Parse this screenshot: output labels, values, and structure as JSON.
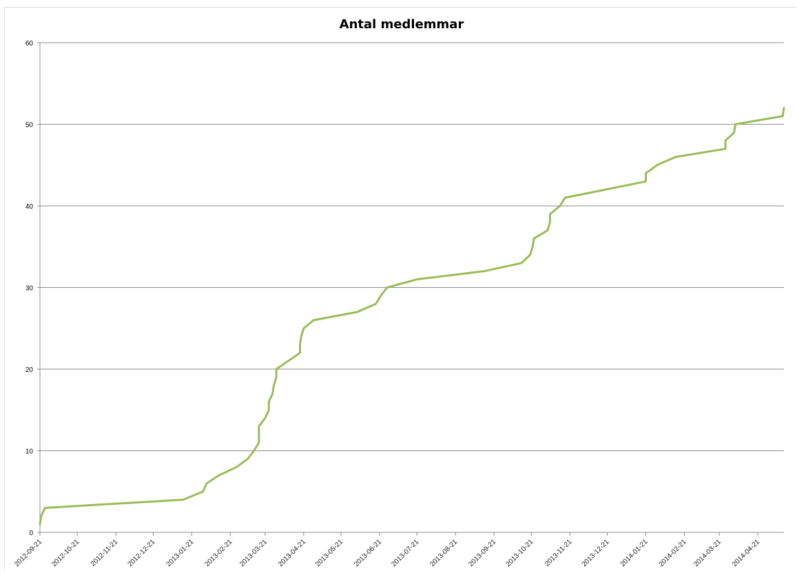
{
  "chart_data": {
    "type": "line",
    "title": "Antal medlemmar",
    "xlabel": "",
    "ylabel": "",
    "x_axis_type": "date",
    "xlim": [
      "2012-09-21",
      "2014-05-12"
    ],
    "ylim": [
      0,
      60
    ],
    "y_ticks": [
      0,
      10,
      20,
      30,
      40,
      50,
      60
    ],
    "x_ticks": [
      "2012-09-21",
      "2012-10-21",
      "2012-11-21",
      "2012-12-21",
      "2013-01-21",
      "2013-02-21",
      "2013-03-21",
      "2013-04-21",
      "2013-05-21",
      "2013-06-21",
      "2013-07-21",
      "2013-08-21",
      "2013-09-21",
      "2013-10-21",
      "2013-11-21",
      "2013-12-21",
      "2014-01-21",
      "2014-02-21",
      "2014-03-21",
      "2014-04-21"
    ],
    "grid": true,
    "legend": "none",
    "colors": {
      "line": "#9bbb59",
      "grid": "#8c8c8c"
    },
    "series": [
      {
        "points": [
          [
            "2012-09-21",
            1
          ],
          [
            "2012-09-22",
            2
          ],
          [
            "2012-09-25",
            3
          ],
          [
            "2013-01-14",
            4
          ],
          [
            "2013-01-30",
            5
          ],
          [
            "2013-02-02",
            6
          ],
          [
            "2013-02-12",
            7
          ],
          [
            "2013-02-26",
            8
          ],
          [
            "2013-03-07",
            9
          ],
          [
            "2013-03-12",
            10
          ],
          [
            "2013-03-16",
            11
          ],
          [
            "2013-03-16",
            12
          ],
          [
            "2013-03-16",
            13
          ],
          [
            "2013-03-21",
            14
          ],
          [
            "2013-03-24",
            15
          ],
          [
            "2013-03-24",
            16
          ],
          [
            "2013-03-27",
            17
          ],
          [
            "2013-03-28",
            18
          ],
          [
            "2013-03-30",
            19
          ],
          [
            "2013-03-30",
            20
          ],
          [
            "2013-04-18",
            22
          ],
          [
            "2013-04-18",
            23
          ],
          [
            "2013-04-19",
            24
          ],
          [
            "2013-04-21",
            25
          ],
          [
            "2013-04-29",
            26
          ],
          [
            "2013-06-03",
            27
          ],
          [
            "2013-06-18",
            28
          ],
          [
            "2013-06-22",
            29
          ],
          [
            "2013-06-27",
            30
          ],
          [
            "2013-07-21",
            31
          ],
          [
            "2013-09-13",
            32
          ],
          [
            "2013-10-13",
            33
          ],
          [
            "2013-10-20",
            34
          ],
          [
            "2013-10-22",
            35
          ],
          [
            "2013-10-23",
            36
          ],
          [
            "2013-11-03",
            37
          ],
          [
            "2013-11-05",
            38
          ],
          [
            "2013-11-05",
            39
          ],
          [
            "2013-11-13",
            40
          ],
          [
            "2013-11-17",
            41
          ],
          [
            "2014-01-21",
            43
          ],
          [
            "2014-01-21",
            44
          ],
          [
            "2014-01-30",
            45
          ],
          [
            "2014-02-14",
            46
          ],
          [
            "2014-03-26",
            47
          ],
          [
            "2014-03-26",
            48
          ],
          [
            "2014-04-02",
            49
          ],
          [
            "2014-04-03",
            50
          ],
          [
            "2014-05-11",
            51
          ],
          [
            "2014-05-12",
            52
          ]
        ]
      }
    ]
  }
}
